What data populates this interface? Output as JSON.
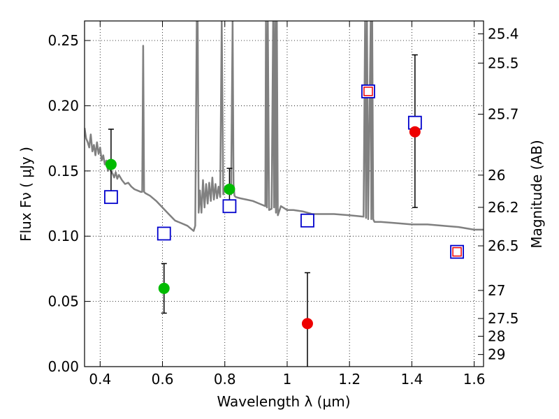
{
  "chart_data": {
    "type": "scatter",
    "xlabel": "Wavelength  λ (μm)",
    "ylabel": "Flux  Fν  ( μJy )",
    "ylabel_right": "Magnitude (AB)",
    "xlim": [
      0.35,
      1.63
    ],
    "ylim": [
      0,
      0.265
    ],
    "grid": true,
    "x_ticks": [
      0.4,
      0.6,
      0.8,
      1.0,
      1.2,
      1.4,
      1.6
    ],
    "x_tick_labels": [
      "0.4",
      "0.6",
      "0.8",
      "1",
      "1.2",
      "1.4",
      "1.6"
    ],
    "y_ticks": [
      0.0,
      0.05,
      0.1,
      0.15,
      0.2,
      0.25
    ],
    "y_tick_labels": [
      "0.00",
      "0.05",
      "0.10",
      "0.15",
      "0.20",
      "0.25"
    ],
    "right_ticks": [
      {
        "label": "25.4",
        "flux": 0.2551
      },
      {
        "label": "25.5",
        "flux": 0.2327
      },
      {
        "label": "25.7",
        "flux": 0.1935
      },
      {
        "label": "26",
        "flux": 0.1468
      },
      {
        "label": "26.2",
        "flux": 0.1221
      },
      {
        "label": "26.5",
        "flux": 0.0926
      },
      {
        "label": "27",
        "flux": 0.0584
      },
      {
        "label": "27.5",
        "flux": 0.0369
      },
      {
        "label": "28",
        "flux": 0.0233
      },
      {
        "label": "29",
        "flux": 0.0093
      }
    ],
    "colors": {
      "model": "#808080",
      "detection": "#00bb00",
      "upper": "#ee0000",
      "model_band": "#0000cc",
      "error_bar": "#000000"
    },
    "series": [
      {
        "marker": "line",
        "x": [
          0.35,
          0.355,
          0.36,
          0.365,
          0.37,
          0.375,
          0.38,
          0.385,
          0.39,
          0.395,
          0.4,
          0.405,
          0.41,
          0.415,
          0.42,
          0.425,
          0.43,
          0.435,
          0.44,
          0.445,
          0.45,
          0.455,
          0.46,
          0.47,
          0.48,
          0.49,
          0.5,
          0.51,
          0.52,
          0.53,
          0.535,
          0.538,
          0.541,
          0.545,
          0.56,
          0.58,
          0.6,
          0.62,
          0.64,
          0.66,
          0.68,
          0.7,
          0.705,
          0.71,
          0.713,
          0.716,
          0.72,
          0.725,
          0.73,
          0.735,
          0.74,
          0.745,
          0.75,
          0.755,
          0.76,
          0.765,
          0.77,
          0.775,
          0.78,
          0.785,
          0.79,
          0.795,
          0.8,
          0.81,
          0.82,
          0.825,
          0.828,
          0.831,
          0.835,
          0.85,
          0.87,
          0.89,
          0.91,
          0.93,
          0.932,
          0.935,
          0.938,
          0.942,
          0.95,
          0.955,
          0.958,
          0.961,
          0.964,
          0.967,
          0.97,
          0.98,
          1.0,
          1.02,
          1.05,
          1.08,
          1.1,
          1.15,
          1.2,
          1.245,
          1.25,
          1.253,
          1.256,
          1.26,
          1.268,
          1.27,
          1.273,
          1.276,
          1.28,
          1.3,
          1.35,
          1.4,
          1.45,
          1.5,
          1.55,
          1.6,
          1.63
        ],
        "y": [
          0.183,
          0.175,
          0.172,
          0.168,
          0.178,
          0.165,
          0.17,
          0.162,
          0.172,
          0.163,
          0.168,
          0.158,
          0.162,
          0.155,
          0.158,
          0.15,
          0.153,
          0.15,
          0.148,
          0.145,
          0.149,
          0.144,
          0.147,
          0.143,
          0.14,
          0.141,
          0.138,
          0.136,
          0.135,
          0.134,
          0.134,
          0.246,
          0.134,
          0.133,
          0.131,
          0.127,
          0.122,
          0.117,
          0.112,
          0.11,
          0.108,
          0.104,
          0.108,
          0.265,
          0.265,
          0.118,
          0.135,
          0.118,
          0.143,
          0.122,
          0.14,
          0.125,
          0.141,
          0.127,
          0.145,
          0.128,
          0.14,
          0.129,
          0.138,
          0.13,
          0.265,
          0.132,
          0.136,
          0.134,
          0.132,
          0.265,
          0.14,
          0.131,
          0.13,
          0.129,
          0.128,
          0.127,
          0.125,
          0.123,
          0.265,
          0.122,
          0.265,
          0.12,
          0.121,
          0.265,
          0.122,
          0.265,
          0.118,
          0.265,
          0.116,
          0.123,
          0.12,
          0.12,
          0.119,
          0.117,
          0.117,
          0.117,
          0.116,
          0.115,
          0.265,
          0.114,
          0.265,
          0.113,
          0.265,
          0.113,
          0.265,
          0.113,
          0.111,
          0.111,
          0.11,
          0.109,
          0.109,
          0.108,
          0.107,
          0.105,
          0.105
        ]
      },
      {
        "marker": "circle-green",
        "x": [
          0.435,
          0.605,
          0.815
        ],
        "y": [
          0.155,
          0.06,
          0.136
        ],
        "err_low": [
          0.129,
          0.041,
          0.121
        ],
        "err_high": [
          0.182,
          0.079,
          0.152
        ]
      },
      {
        "marker": "circle-red",
        "x": [
          1.065,
          1.41
        ],
        "y": [
          0.033,
          0.18
        ],
        "err_low": [
          0.0,
          0.122
        ],
        "err_high": [
          0.072,
          0.239
        ]
      },
      {
        "marker": "square-blue",
        "x": [
          0.435,
          0.605,
          0.815,
          1.065,
          1.26,
          1.41,
          1.545
        ],
        "y": [
          0.13,
          0.102,
          0.123,
          0.112,
          0.211,
          0.187,
          0.088
        ]
      },
      {
        "marker": "square-red",
        "x": [
          1.26,
          1.545
        ],
        "y": [
          0.211,
          0.088
        ]
      }
    ]
  }
}
